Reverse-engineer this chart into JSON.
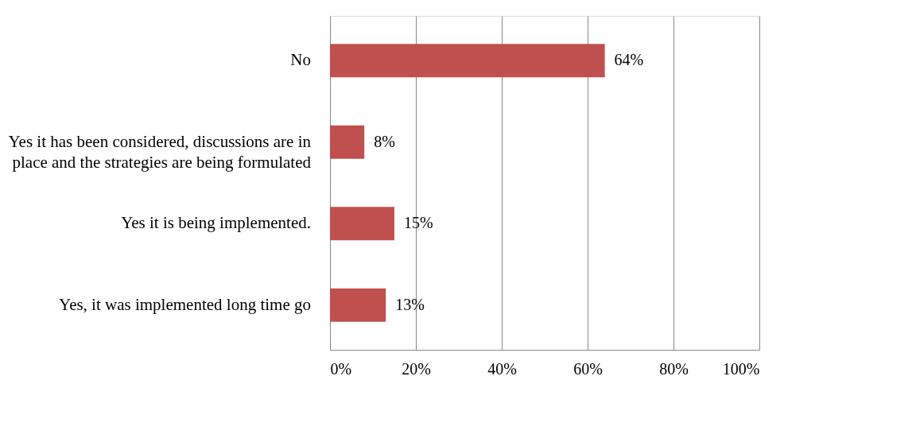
{
  "chart_data": {
    "type": "bar",
    "orientation": "horizontal",
    "categories": [
      "No",
      "Yes it has been considered, discussions are in place and the strategies are being formulated",
      "Yes it is being implemented.",
      "Yes, it was implemented long time go"
    ],
    "values": [
      64,
      8,
      15,
      13
    ],
    "color": "#c0504d",
    "value_labels": [
      "64%",
      "8%",
      "15%",
      "13%"
    ],
    "xlim": [
      0,
      100
    ],
    "xticks": [
      {
        "value": 0,
        "label": "0%"
      },
      {
        "value": 20,
        "label": "20%"
      },
      {
        "value": 40,
        "label": "40%"
      },
      {
        "value": 60,
        "label": "60%"
      },
      {
        "value": 80,
        "label": "80%"
      },
      {
        "value": 100,
        "label": "100%"
      }
    ],
    "grid": "x"
  }
}
